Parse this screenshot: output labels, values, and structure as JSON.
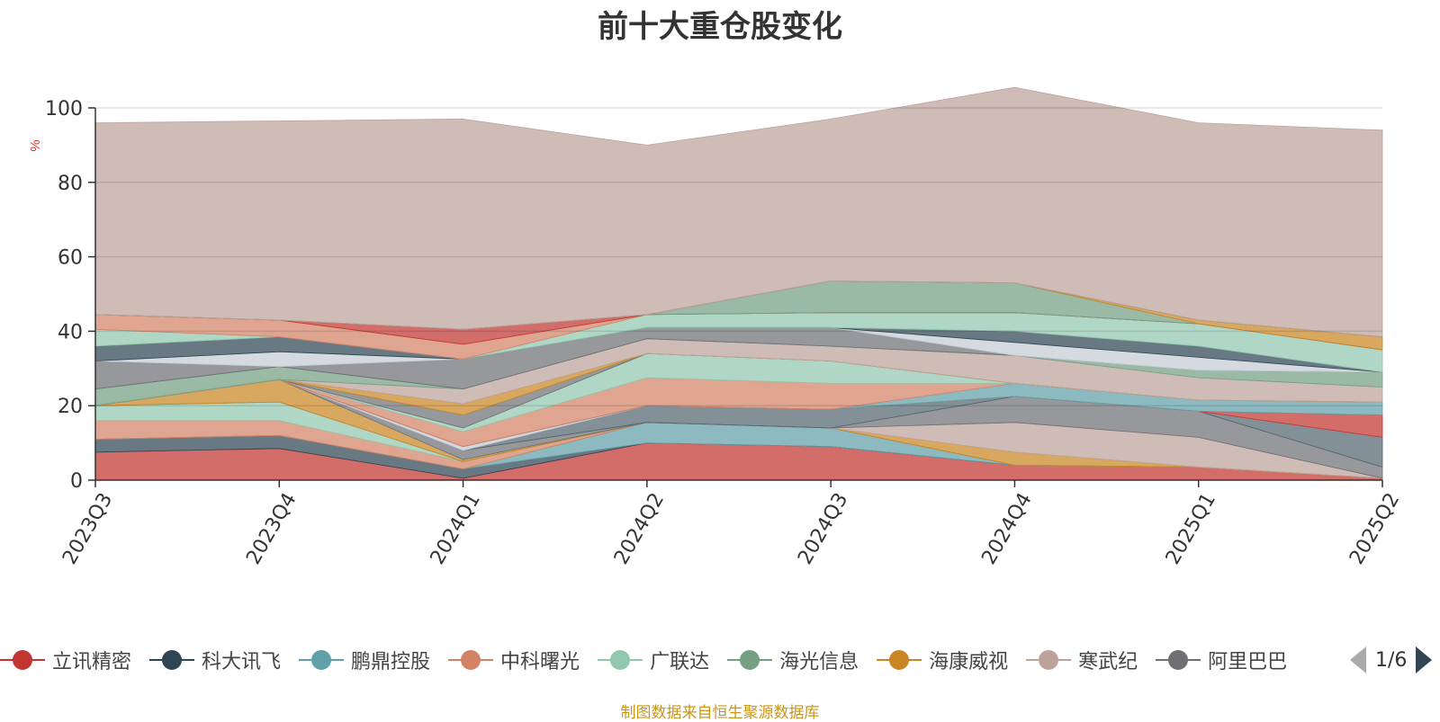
{
  "chart_data": {
    "type": "area",
    "stacked": true,
    "title": "前十大重仓股变化",
    "ylabel": "%",
    "ylim": [
      0,
      100
    ],
    "yticks": [
      0,
      20,
      40,
      60,
      80,
      100
    ],
    "grid": true,
    "legend_position": "bottom",
    "categories": [
      "2023Q3",
      "2023Q4",
      "2024Q1",
      "2024Q2",
      "2024Q3",
      "2024Q4",
      "2025Q1",
      "2025Q2"
    ],
    "series": [
      {
        "name": "立讯精密",
        "color": "#c23531",
        "values": [
          7.5,
          8.5,
          0.5,
          10,
          9,
          4,
          3.5,
          0.5
        ]
      },
      {
        "name": "科大讯飞",
        "color": "#2f4554",
        "values": [
          3.5,
          3.5,
          2.5,
          0,
          0,
          0,
          0,
          0
        ]
      },
      {
        "name": "鹏鼎控股",
        "color": "#61a0a8",
        "values": [
          0,
          0,
          0,
          5.5,
          5,
          0,
          0,
          0
        ]
      },
      {
        "name": "中科曙光",
        "color": "#d48265",
        "values": [
          5,
          4,
          2,
          0,
          0,
          0,
          0,
          0
        ]
      },
      {
        "name": "广联达",
        "color": "#91c7ae",
        "values": [
          4,
          5,
          0,
          0,
          0,
          0,
          0,
          0
        ]
      },
      {
        "name": "海光信息",
        "color": "#749f83",
        "values": [
          0,
          0,
          0,
          0,
          0,
          0,
          0,
          0
        ]
      },
      {
        "name": "海康威视",
        "color": "#ca8622",
        "values": [
          0,
          6,
          0.5,
          0,
          0,
          3.5,
          0,
          0
        ]
      },
      {
        "name": "寒武纪",
        "color": "#bda29a",
        "values": [
          0,
          0,
          0,
          0,
          0,
          8,
          8,
          0
        ]
      },
      {
        "name": "阿里巴巴",
        "color": "#6e7074",
        "values": [
          0,
          0,
          2.5,
          0,
          0,
          7,
          7,
          3
        ]
      },
      {
        "name": "",
        "color": "#546570",
        "values": [
          0,
          0,
          0,
          4.5,
          5,
          0,
          0,
          8
        ]
      },
      {
        "name": "",
        "color": "#c4ccd3",
        "values": [
          0,
          0,
          1,
          0,
          0,
          0,
          0,
          0
        ]
      },
      {
        "name": "",
        "color": "#c23531",
        "values": [
          0,
          0,
          0,
          0,
          0,
          0,
          0,
          6
        ]
      },
      {
        "name": "",
        "color": "#61a0a8",
        "values": [
          0,
          0,
          0,
          0,
          0,
          3.5,
          3,
          3.5
        ]
      },
      {
        "name": "",
        "color": "#d48265",
        "values": [
          0,
          0,
          4,
          7.5,
          7,
          0,
          0,
          0
        ]
      },
      {
        "name": "",
        "color": "#91c7ae",
        "values": [
          0,
          0,
          1,
          6.5,
          6,
          0,
          0,
          0
        ]
      },
      {
        "name": "",
        "color": "#6e7074",
        "values": [
          0,
          0,
          3.5,
          0,
          0,
          0,
          0,
          0
        ]
      },
      {
        "name": "",
        "color": "#ca8622",
        "values": [
          0,
          0,
          3,
          0,
          0,
          0,
          0,
          0
        ]
      },
      {
        "name": "",
        "color": "#bda29a",
        "values": [
          0,
          0,
          4,
          4,
          4,
          7.5,
          6,
          4
        ]
      },
      {
        "name": "",
        "color": "#749f83",
        "values": [
          4.5,
          3.5,
          0,
          0,
          0,
          0,
          2,
          4
        ]
      },
      {
        "name": "",
        "color": "#6e7074",
        "values": [
          7.5,
          0,
          8,
          3,
          5,
          0,
          0,
          0
        ]
      },
      {
        "name": "",
        "color": "#c4ccd3",
        "values": [
          0,
          4,
          0,
          0,
          0,
          3.5,
          3.5,
          0
        ]
      },
      {
        "name": "",
        "color": "#2f4554",
        "values": [
          4,
          4,
          0,
          0,
          0,
          3,
          3,
          0
        ]
      },
      {
        "name": "",
        "color": "#91c7ae",
        "values": [
          4.5,
          0,
          0,
          3.5,
          4,
          5,
          6,
          6
        ]
      },
      {
        "name": "",
        "color": "#d48265",
        "values": [
          4,
          4.5,
          4,
          0,
          0,
          0,
          0,
          0
        ]
      },
      {
        "name": "",
        "color": "#c23531",
        "values": [
          0,
          0,
          4,
          0,
          0,
          0,
          0,
          0
        ]
      },
      {
        "name": "",
        "color": "#749f83",
        "values": [
          0,
          0,
          0,
          0,
          8.5,
          8,
          0,
          0
        ]
      },
      {
        "name": "",
        "color": "#ca8622",
        "values": [
          0,
          0,
          0,
          0,
          0,
          0,
          1,
          3.5
        ]
      },
      {
        "name": "",
        "color": "#546570",
        "values": [
          0,
          0,
          0,
          0,
          0,
          0,
          0,
          0
        ]
      },
      {
        "name": "",
        "color": "#bda29a",
        "values": [
          51.5,
          53.5,
          56.5,
          45.5,
          43.5,
          52.5,
          53,
          55.5
        ]
      }
    ]
  },
  "legend": {
    "items": [
      {
        "label": "立讯精密",
        "color": "#c23531"
      },
      {
        "label": "科大讯飞",
        "color": "#2f4554"
      },
      {
        "label": "鹏鼎控股",
        "color": "#61a0a8"
      },
      {
        "label": "中科曙光",
        "color": "#d48265"
      },
      {
        "label": "广联达",
        "color": "#91c7ae"
      },
      {
        "label": "海光信息",
        "color": "#749f83"
      },
      {
        "label": "海康威视",
        "color": "#ca8622"
      },
      {
        "label": "寒武纪",
        "color": "#bda29a"
      },
      {
        "label": "阿里巴巴",
        "color": "#6e7074"
      }
    ],
    "pager": "1/6"
  },
  "footer": {
    "source": "制图数据来自恒生聚源数据库"
  }
}
